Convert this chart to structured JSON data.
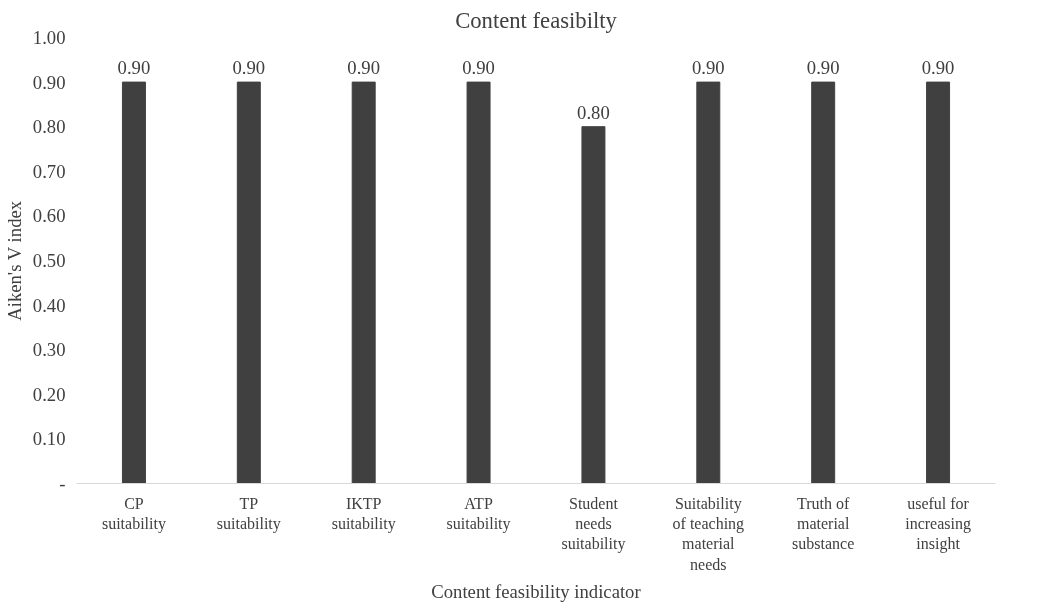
{
  "chart_data": {
    "type": "bar",
    "title": "Content feasibilty",
    "xlabel": "Content feasibility indicator",
    "ylabel": "Aiken's V index",
    "categories": [
      "CP suitability",
      "TP suitability",
      "IKTP suitability",
      "ATP suitability",
      "Student needs suitability",
      "Suitability of teaching material needs",
      "Truth of material substance",
      "useful for increasing insight"
    ],
    "values": [
      0.9,
      0.9,
      0.9,
      0.9,
      0.8,
      0.9,
      0.9,
      0.9
    ],
    "color": "#404040",
    "ylim": [
      0,
      1
    ],
    "yticks": [
      {
        "value": 0,
        "label": "-"
      },
      {
        "value": 0.1,
        "label": "0.10"
      },
      {
        "value": 0.2,
        "label": "0.20"
      },
      {
        "value": 0.3,
        "label": "0.30"
      },
      {
        "value": 0.4,
        "label": "0.40"
      },
      {
        "value": 0.5,
        "label": "0.50"
      },
      {
        "value": 0.6,
        "label": "0.60"
      },
      {
        "value": 0.7,
        "label": "0.70"
      },
      {
        "value": 0.8,
        "label": "0.80"
      },
      {
        "value": 0.9,
        "label": "0.90"
      },
      {
        "value": 1,
        "label": "1.00"
      }
    ],
    "value_labels": [
      "0.90",
      "0.90",
      "0.90",
      "0.90",
      "0.80",
      "0.90",
      "0.90",
      "0.90"
    ],
    "grid": false
  }
}
